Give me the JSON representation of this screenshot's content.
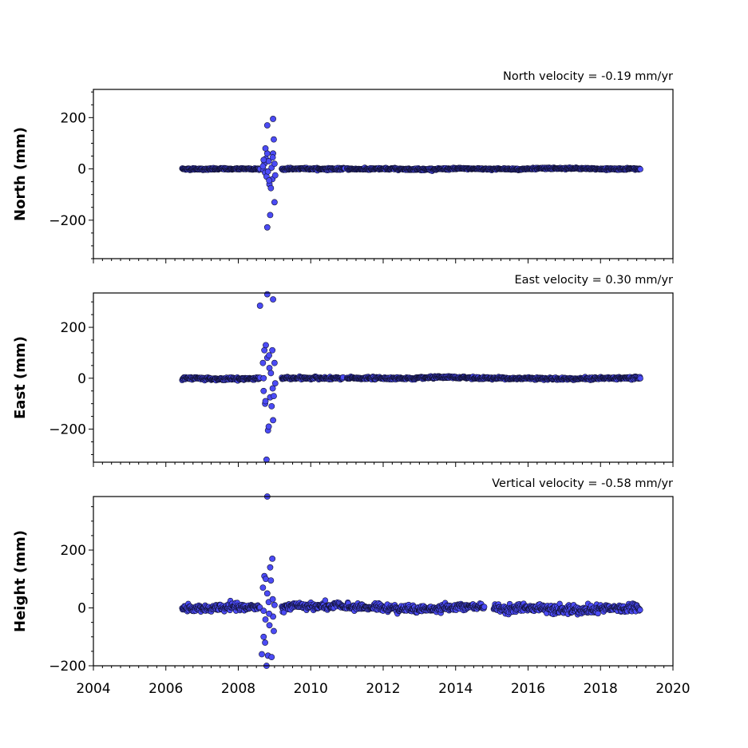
{
  "chart_data": [
    {
      "type": "scatter",
      "id": "north",
      "ylabel": "North (mm)",
      "velocity_label": "North velocity = -0.19 mm/yr",
      "ylim": [
        -350,
        310
      ],
      "xlim": [
        2004,
        2020
      ],
      "yticks": [
        200,
        0,
        -200
      ],
      "ytick_labels": [
        "200",
        "0",
        "−200"
      ],
      "color": "#4b4bf5",
      "segments": [
        {
          "x_start": 2006.45,
          "x_end": 2008.6,
          "noise": 3
        },
        {
          "x_start": 2009.2,
          "x_end": 2010.95,
          "noise": 3
        },
        {
          "x_start": 2011.0,
          "x_end": 2019.1,
          "noise": 3
        }
      ],
      "outliers": [
        [
          2008.7,
          -5
        ],
        [
          2008.72,
          20
        ],
        [
          2008.74,
          -15
        ],
        [
          2008.76,
          40
        ],
        [
          2008.78,
          -30
        ],
        [
          2008.8,
          60
        ],
        [
          2008.8,
          170
        ],
        [
          2008.8,
          -228
        ],
        [
          2008.82,
          -10
        ],
        [
          2008.84,
          30
        ],
        [
          2008.86,
          -60
        ],
        [
          2008.88,
          -180
        ],
        [
          2008.9,
          -75
        ],
        [
          2008.92,
          5
        ],
        [
          2008.94,
          -40
        ],
        [
          2008.96,
          60
        ],
        [
          2008.96,
          195
        ],
        [
          2008.98,
          115
        ],
        [
          2009.0,
          -130
        ],
        [
          2009.0,
          20
        ],
        [
          2009.02,
          -25
        ],
        [
          2008.75,
          80
        ],
        [
          2008.85,
          -45
        ],
        [
          2008.95,
          45
        ],
        [
          2008.7,
          35
        ],
        [
          2008.68,
          10
        ]
      ]
    },
    {
      "type": "scatter",
      "id": "east",
      "ylabel": "East (mm)",
      "velocity_label": "East velocity = 0.30 mm/yr",
      "ylim": [
        -330,
        335
      ],
      "xlim": [
        2004,
        2020
      ],
      "yticks": [
        200,
        0,
        -200
      ],
      "ytick_labels": [
        "200",
        "0",
        "−200"
      ],
      "color": "#4b4bf5",
      "segments": [
        {
          "x_start": 2006.45,
          "x_end": 2008.6,
          "noise": 4
        },
        {
          "x_start": 2009.2,
          "x_end": 2010.9,
          "noise": 4
        },
        {
          "x_start": 2011.0,
          "x_end": 2019.1,
          "noise": 4
        }
      ],
      "outliers": [
        [
          2008.6,
          285
        ],
        [
          2008.68,
          60
        ],
        [
          2008.7,
          -50
        ],
        [
          2008.72,
          110
        ],
        [
          2008.74,
          -100
        ],
        [
          2008.76,
          130
        ],
        [
          2008.78,
          -320
        ],
        [
          2008.8,
          330
        ],
        [
          2008.8,
          80
        ],
        [
          2008.82,
          -205
        ],
        [
          2008.84,
          -190
        ],
        [
          2008.86,
          40
        ],
        [
          2008.88,
          -75
        ],
        [
          2008.9,
          20
        ],
        [
          2008.92,
          -110
        ],
        [
          2008.94,
          110
        ],
        [
          2008.96,
          310
        ],
        [
          2008.96,
          -165
        ],
        [
          2008.98,
          -70
        ],
        [
          2009.0,
          60
        ],
        [
          2009.02,
          -20
        ],
        [
          2008.75,
          -90
        ],
        [
          2008.85,
          90
        ],
        [
          2008.95,
          -40
        ],
        [
          2008.7,
          0
        ]
      ]
    },
    {
      "type": "scatter",
      "id": "height",
      "ylabel": "Height (mm)",
      "velocity_label": "Vertical velocity = -0.58 mm/yr",
      "ylim": [
        -200,
        385
      ],
      "xlim": [
        2004,
        2020
      ],
      "yticks": [
        200,
        0,
        -200
      ],
      "ytick_labels": [
        "200",
        "0",
        "−200"
      ],
      "xticks": [
        2004,
        2006,
        2008,
        2010,
        2012,
        2014,
        2016,
        2018,
        2020
      ],
      "xtick_labels": [
        "2004",
        "2006",
        "2008",
        "2010",
        "2012",
        "2014",
        "2016",
        "2018",
        "2020"
      ],
      "color": "#4b4bf5",
      "segments": [
        {
          "x_start": 2006.45,
          "x_end": 2008.6,
          "noise": 10
        },
        {
          "x_start": 2009.2,
          "x_end": 2014.8,
          "noise": 10
        },
        {
          "x_start": 2015.05,
          "x_end": 2019.1,
          "noise": 12
        }
      ],
      "outliers": [
        [
          2008.65,
          -160
        ],
        [
          2008.68,
          70
        ],
        [
          2008.7,
          -100
        ],
        [
          2008.72,
          110
        ],
        [
          2008.74,
          -120
        ],
        [
          2008.76,
          100
        ],
        [
          2008.78,
          -200
        ],
        [
          2008.8,
          385
        ],
        [
          2008.8,
          50
        ],
        [
          2008.82,
          -165
        ],
        [
          2008.84,
          20
        ],
        [
          2008.86,
          -60
        ],
        [
          2008.88,
          140
        ],
        [
          2008.9,
          95
        ],
        [
          2008.92,
          -170
        ],
        [
          2008.94,
          170
        ],
        [
          2008.96,
          -30
        ],
        [
          2008.98,
          -80
        ],
        [
          2009.0,
          10
        ],
        [
          2008.75,
          -40
        ],
        [
          2008.85,
          -20
        ],
        [
          2008.95,
          30
        ],
        [
          2008.7,
          -10
        ]
      ]
    }
  ]
}
